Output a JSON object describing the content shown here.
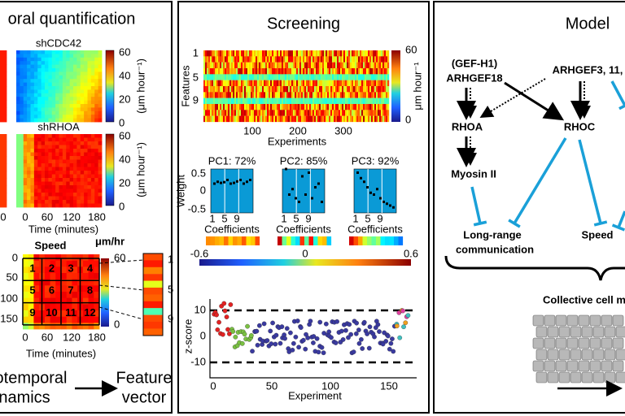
{
  "left": {
    "title": "oral quantification",
    "map_labels": [
      "shCDC42",
      "shRHOA"
    ],
    "colorbar_ticks": [
      "60",
      "40",
      "20",
      "0"
    ],
    "colorbar_unit": "(μm hour⁻¹)",
    "partial_tick": "0",
    "time_ticks": [
      "0",
      "60",
      "120",
      "180"
    ],
    "time_label": "Time (minutes)",
    "speed_title": "Speed",
    "speed_unit": "μm/hr",
    "cells": [
      "1",
      "2",
      "3",
      "4",
      "5",
      "6",
      "7",
      "8",
      "9",
      "10",
      "11",
      "12"
    ],
    "y_ticks": [
      "0",
      "50",
      "100",
      "150"
    ],
    "speed_bar": [
      "60",
      "0"
    ],
    "vector_ticks": [
      "1",
      "5",
      "9"
    ],
    "caption_left": [
      "otemporal",
      "namics"
    ],
    "caption_right": [
      "Feature",
      "vector"
    ]
  },
  "middle": {
    "title": "Screening",
    "y_ticks": [
      "1",
      "5",
      "9"
    ],
    "y_label": "Features",
    "bar_ticks": [
      "60",
      "0"
    ],
    "bar_unit": "μm hour⁻¹",
    "x_ticks": [
      "100",
      "200",
      "300"
    ],
    "x_label": "Experiments",
    "pcs": [
      "PC1: 72%",
      "PC2: 85%",
      "PC3: 92%"
    ],
    "weight_ticks": [
      "0.5",
      "0",
      "-0.5"
    ],
    "weight_label": "Weight",
    "coef_ticks": [
      "1",
      "5",
      "9"
    ],
    "coef_label": "Coefficients",
    "scale": [
      "-0.6",
      "0",
      "0.6"
    ],
    "z_ticks": [
      "10",
      "0",
      "-10"
    ],
    "z_label": "z-score",
    "exp_ticks": [
      "0",
      "50",
      "100",
      "150"
    ],
    "exp_label": "Experiment"
  },
  "right": {
    "title": "Model",
    "nodes": [
      "(GEF-H1)",
      "ARHGEF18",
      "ARHGEF3, 11,",
      "RHOA",
      "RHOC",
      "Myosin II",
      "Long-range",
      "communication",
      "Speed",
      "Collective cell m"
    ]
  }
}
